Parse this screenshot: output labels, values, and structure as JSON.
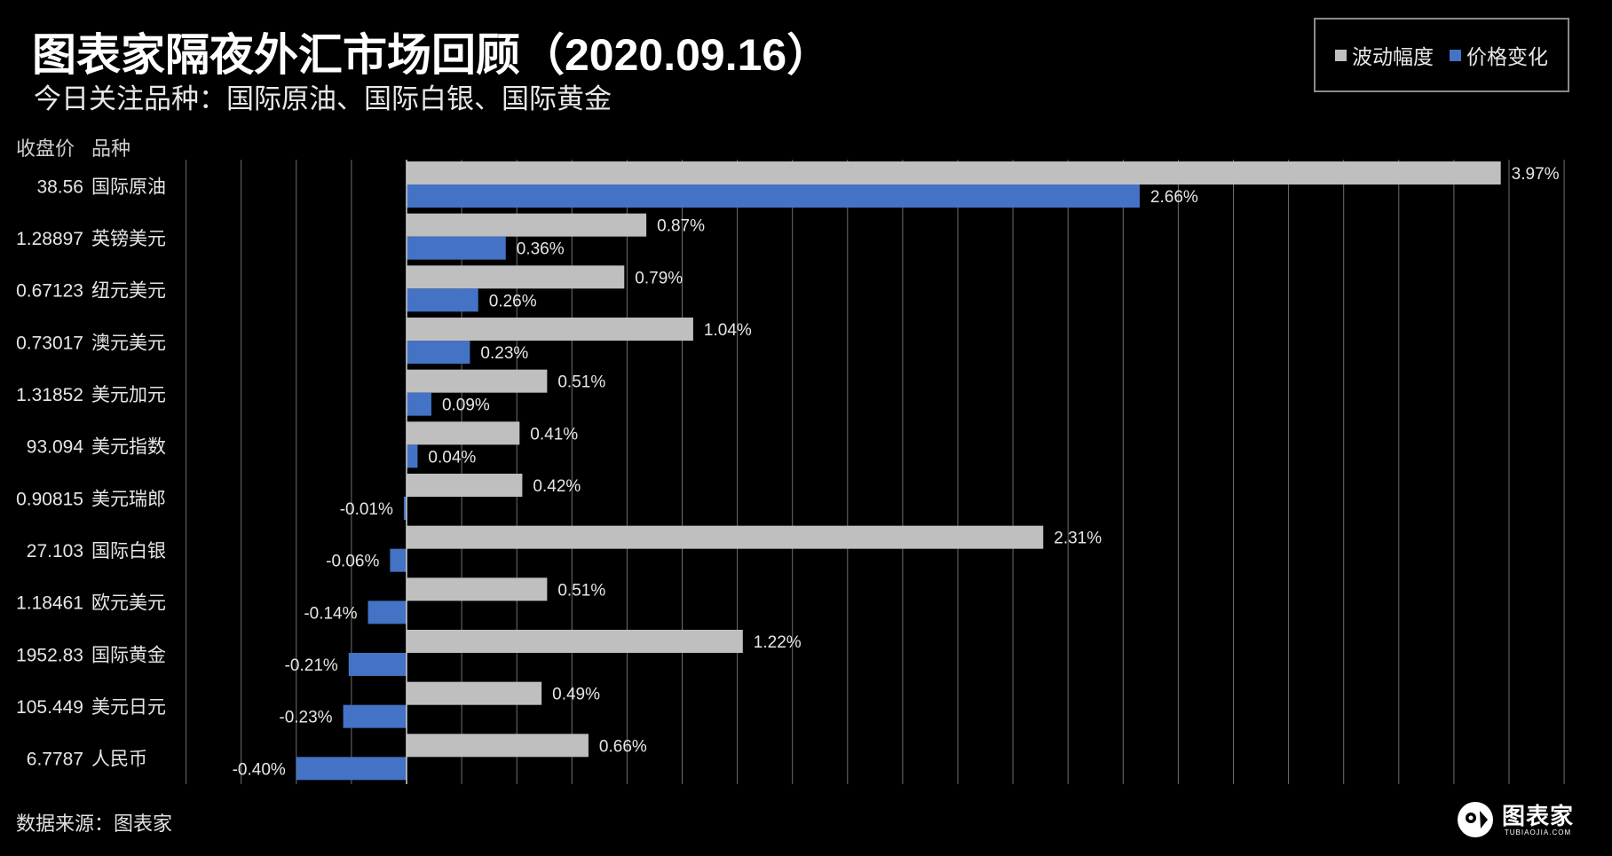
{
  "header": {
    "title": "图表家隔夜外汇市场回顾（2020.09.16）",
    "subtitle": "今日关注品种：国际原油、国际白银、国际黄金"
  },
  "legend": {
    "items": [
      {
        "label": "波动幅度",
        "color": "#bfbfbf"
      },
      {
        "label": "价格变化",
        "color": "#4472c4"
      }
    ]
  },
  "table_headers": {
    "price": "收盘价",
    "name": "品种"
  },
  "chart_data": {
    "type": "bar",
    "orientation": "horizontal",
    "value_unit": "%",
    "xlim": [
      -0.8,
      4.2
    ],
    "x_grid_step": 0.2,
    "grid": true,
    "rows": [
      {
        "price": "38.56",
        "name": "国际原油"
      },
      {
        "price": "1.28897",
        "name": "英镑美元"
      },
      {
        "price": "0.67123",
        "name": "纽元美元"
      },
      {
        "price": "0.73017",
        "name": "澳元美元"
      },
      {
        "price": "1.31852",
        "name": "美元加元"
      },
      {
        "price": "93.094",
        "name": "美元指数"
      },
      {
        "price": "0.90815",
        "name": "美元瑞郎"
      },
      {
        "price": "27.103",
        "name": "国际白银"
      },
      {
        "price": "1.18461",
        "name": "欧元美元"
      },
      {
        "price": "1952.83",
        "name": "国际黄金"
      },
      {
        "price": "105.449",
        "name": "美元日元"
      },
      {
        "price": "6.7787",
        "name": "人民币"
      }
    ],
    "series": [
      {
        "name": "波动幅度",
        "color": "#bfbfbf",
        "values": [
          3.97,
          0.87,
          0.79,
          1.04,
          0.51,
          0.41,
          0.42,
          2.31,
          0.51,
          1.22,
          0.49,
          0.66
        ],
        "labels": [
          "3.97%",
          "0.87%",
          "0.79%",
          "1.04%",
          "0.51%",
          "0.41%",
          "0.42%",
          "2.31%",
          "0.51%",
          "1.22%",
          "0.49%",
          "0.66%"
        ]
      },
      {
        "name": "价格变化",
        "color": "#4472c4",
        "values": [
          2.66,
          0.36,
          0.26,
          0.23,
          0.09,
          0.04,
          -0.01,
          -0.06,
          -0.14,
          -0.21,
          -0.23,
          -0.4
        ],
        "labels": [
          "2.66%",
          "0.36%",
          "0.26%",
          "0.23%",
          "0.09%",
          "0.04%",
          "-0.01%",
          "-0.06%",
          "-0.14%",
          "-0.21%",
          "-0.23%",
          "-0.40%"
        ]
      }
    ]
  },
  "footer": {
    "source": "数据来源：图表家",
    "brand_name": "图表家",
    "brand_url": "TUBIAOJIA.COM"
  }
}
